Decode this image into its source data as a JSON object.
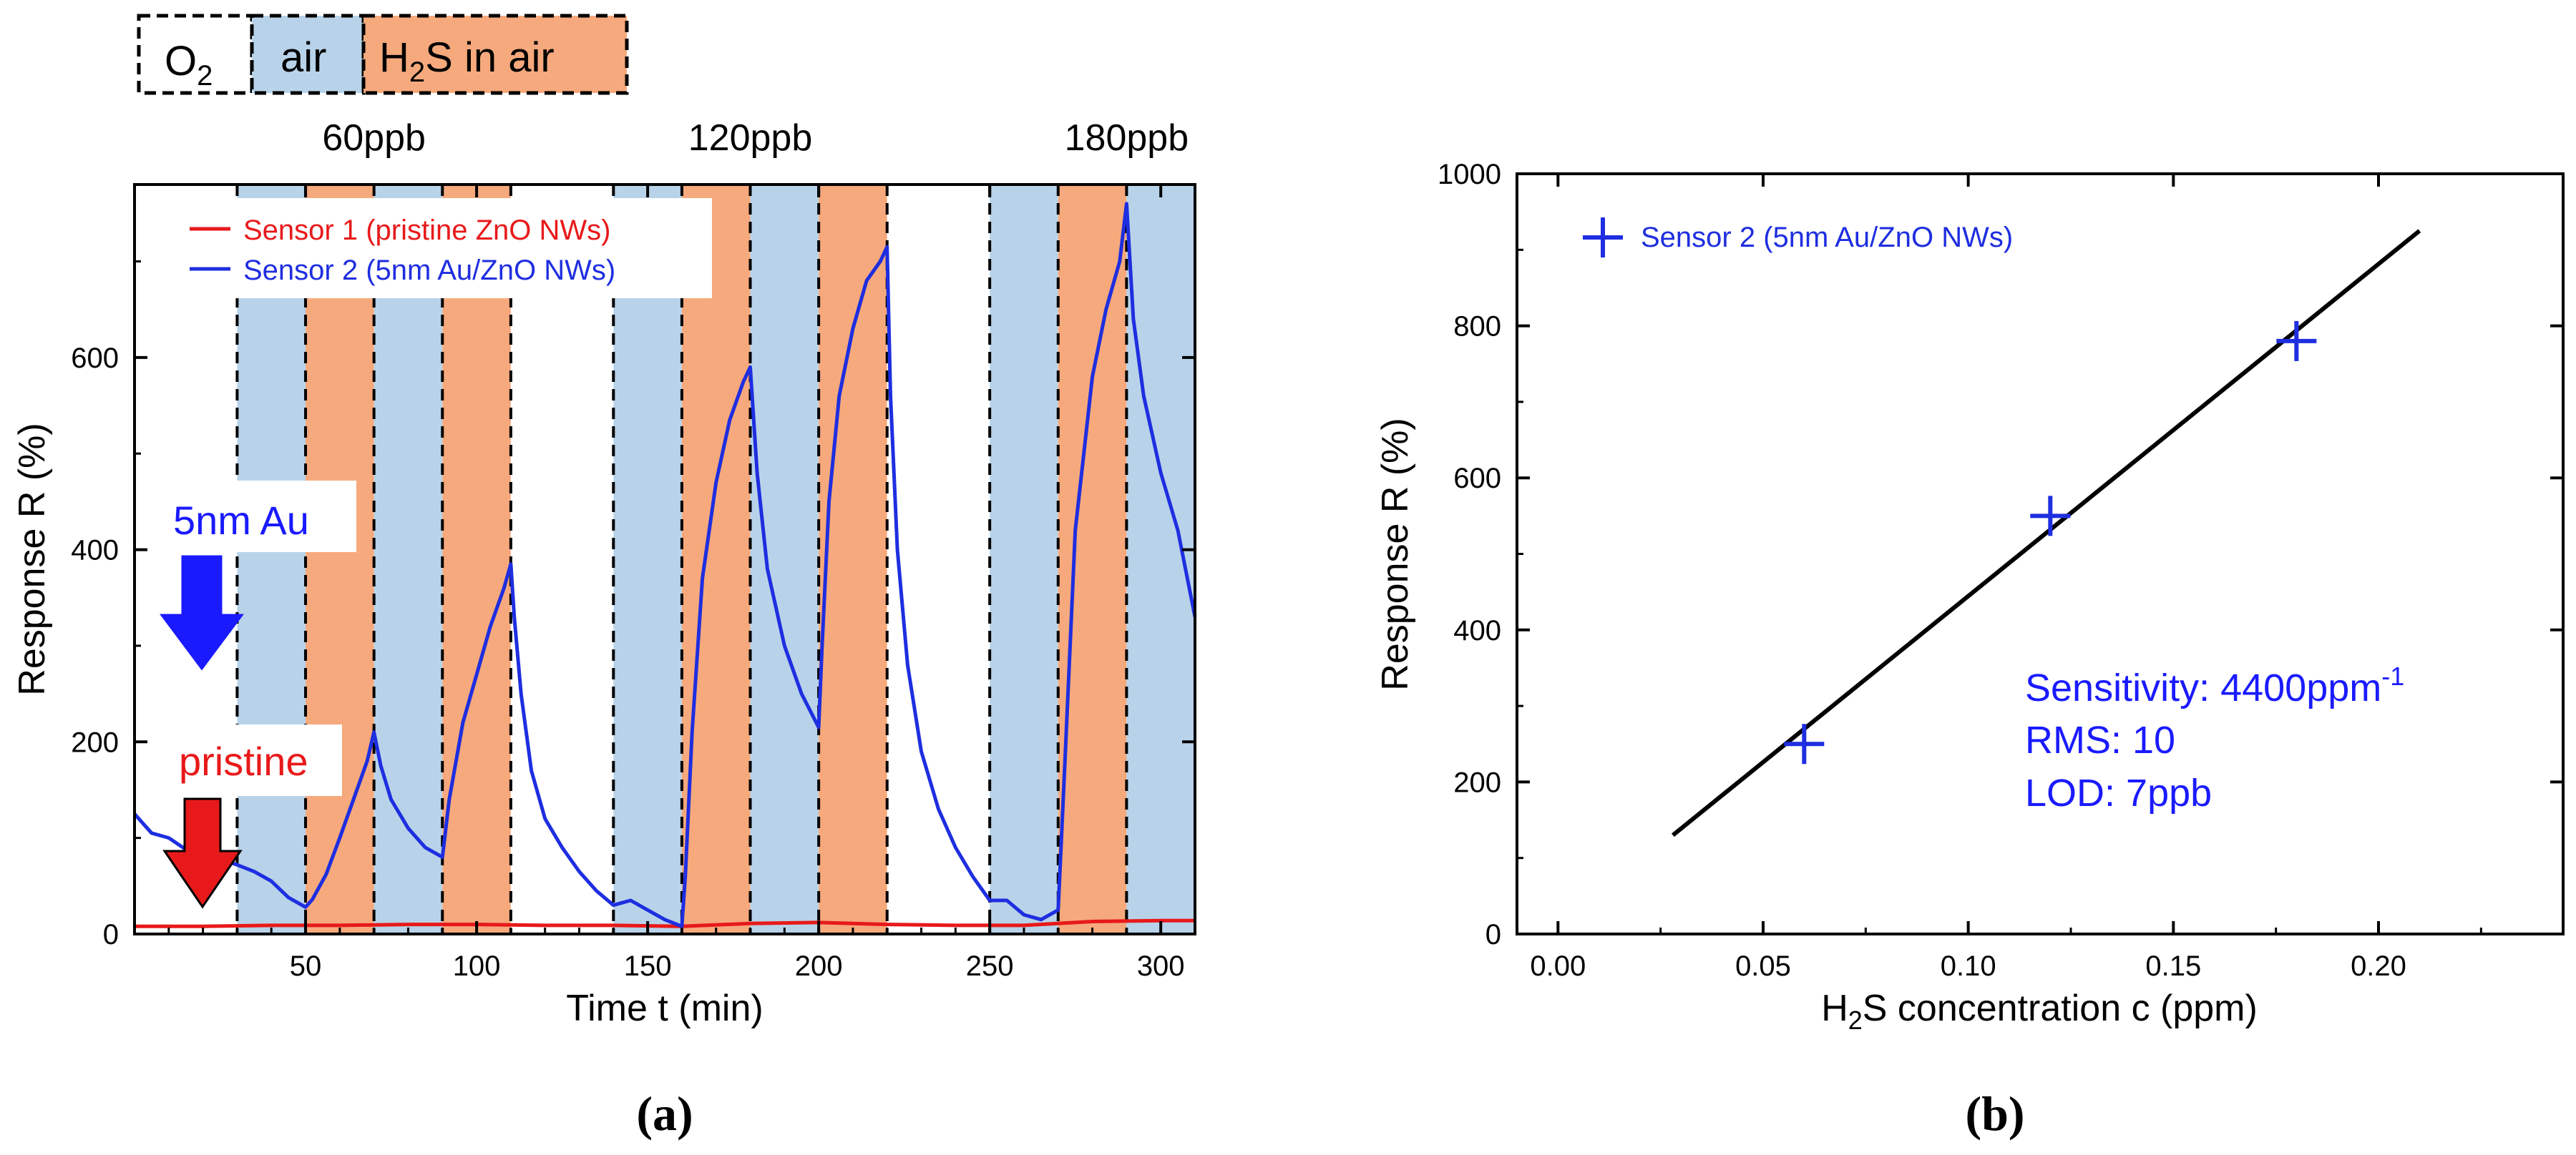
{
  "colors": {
    "o2_bg": "#ffffff",
    "air_bg": "#b8d3e9",
    "h2s_bg": "#f6a97c",
    "sensor1": "#e8191a",
    "sensor2": "#1e2ee0",
    "blue_text": "#1a1aff",
    "red_text": "#e8191a",
    "fit_line": "#000000"
  },
  "legend_boxes": [
    {
      "key": "o2",
      "label": "O",
      "sub": "2"
    },
    {
      "key": "air",
      "label": "air"
    },
    {
      "key": "h2s",
      "label": "H",
      "sub": "2",
      "label_rest": "S in air"
    }
  ],
  "panel_labels": {
    "a": "(a)",
    "b": "(b)"
  },
  "chart_data": [
    {
      "id": "a",
      "type": "line",
      "xlabel": "Time t (min)",
      "ylabel": "Response R (%)",
      "xlim": [
        0,
        310
      ],
      "ylim": [
        0,
        780
      ],
      "xticks": [
        50,
        100,
        150,
        200,
        250,
        300
      ],
      "yticks": [
        0,
        200,
        400,
        600
      ],
      "bands": [
        {
          "from": 30,
          "to": 50,
          "type": "air"
        },
        {
          "from": 50,
          "to": 70,
          "type": "h2s"
        },
        {
          "from": 70,
          "to": 90,
          "type": "air"
        },
        {
          "from": 90,
          "to": 110,
          "type": "h2s"
        },
        {
          "from": 110,
          "to": 140,
          "type": "o2"
        },
        {
          "from": 140,
          "to": 160,
          "type": "air"
        },
        {
          "from": 160,
          "to": 180,
          "type": "h2s"
        },
        {
          "from": 180,
          "to": 200,
          "type": "air"
        },
        {
          "from": 200,
          "to": 220,
          "type": "h2s"
        },
        {
          "from": 220,
          "to": 250,
          "type": "o2"
        },
        {
          "from": 250,
          "to": 270,
          "type": "air"
        },
        {
          "from": 270,
          "to": 290,
          "type": "h2s"
        },
        {
          "from": 290,
          "to": 310,
          "type": "air"
        }
      ],
      "dashed_lines": [
        30,
        50,
        70,
        90,
        110,
        140,
        160,
        180,
        200,
        220,
        250,
        270,
        290
      ],
      "concentration_labels": [
        {
          "text": "60ppb",
          "x": 70
        },
        {
          "text": "120ppb",
          "x": 180
        },
        {
          "text": "180ppb",
          "x": 290
        }
      ],
      "series": [
        {
          "name": "Sensor 1 (pristine ZnO NWs)",
          "color": "#e8191a",
          "x": [
            0,
            20,
            40,
            60,
            80,
            100,
            120,
            140,
            160,
            180,
            200,
            220,
            240,
            260,
            280,
            300,
            310
          ],
          "y": [
            8,
            8,
            9,
            9,
            10,
            10,
            9,
            9,
            8,
            11,
            12,
            10,
            9,
            9,
            13,
            14,
            14
          ]
        },
        {
          "name": "Sensor 2 (5nm Au/ZnO NWs)",
          "color": "#1e2ee0",
          "x": [
            0,
            5,
            10,
            15,
            20,
            25,
            30,
            35,
            40,
            45,
            50,
            52,
            56,
            60,
            64,
            68,
            70,
            72,
            75,
            80,
            85,
            90,
            92,
            96,
            100,
            104,
            108,
            110,
            111,
            113,
            116,
            120,
            125,
            130,
            135,
            140,
            145,
            150,
            155,
            160,
            161,
            163,
            166,
            170,
            174,
            178,
            180,
            182,
            185,
            190,
            195,
            200,
            201,
            203,
            206,
            210,
            214,
            218,
            220,
            221,
            223,
            226,
            230,
            235,
            240,
            245,
            250,
            255,
            260,
            265,
            270,
            272,
            275,
            280,
            284,
            288,
            290,
            292,
            295,
            300,
            305,
            310
          ],
          "y": [
            125,
            105,
            100,
            88,
            82,
            78,
            72,
            65,
            55,
            38,
            28,
            36,
            62,
            100,
            140,
            180,
            210,
            175,
            140,
            110,
            90,
            80,
            140,
            220,
            270,
            320,
            360,
            385,
            330,
            250,
            170,
            120,
            90,
            65,
            45,
            30,
            35,
            25,
            15,
            8,
            60,
            210,
            370,
            470,
            535,
            575,
            590,
            480,
            380,
            300,
            250,
            215,
            300,
            450,
            560,
            630,
            680,
            700,
            715,
            560,
            400,
            280,
            190,
            130,
            90,
            60,
            35,
            35,
            20,
            15,
            25,
            180,
            420,
            580,
            650,
            700,
            760,
            640,
            560,
            480,
            420,
            330
          ]
        }
      ],
      "annotations": [
        {
          "text": "5nm Au",
          "color": "#1a1aff"
        },
        {
          "text": "pristine",
          "color": "#e8191a"
        }
      ]
    },
    {
      "id": "b",
      "type": "scatter",
      "xlabel": "H",
      "xlabel_sub": "2",
      "xlabel_rest": "S concentration c (ppm)",
      "ylabel": "Response R (%)",
      "xlim": [
        -0.01,
        0.245
      ],
      "ylim": [
        0,
        1000
      ],
      "xticks": [
        0.0,
        0.05,
        0.1,
        0.15,
        0.2
      ],
      "xtick_labels": [
        "0.00",
        "0.05",
        "0.10",
        "0.15",
        "0.20"
      ],
      "yticks": [
        0,
        200,
        400,
        600,
        800,
        1000
      ],
      "series": [
        {
          "name": "Sensor 2 (5nm Au/ZnO NWs)",
          "color": "#1e2ee0",
          "x": [
            0.06,
            0.12,
            0.18
          ],
          "y": [
            250,
            550,
            780
          ]
        }
      ],
      "fit_line": {
        "x": [
          0.028,
          0.21
        ],
        "y": [
          130,
          925
        ]
      },
      "stats": {
        "sensitivity_label": "Sensitivity: 4400ppm",
        "sensitivity_sup": "-1",
        "rms": "RMS: 10",
        "lod": "LOD: 7ppb"
      }
    }
  ]
}
